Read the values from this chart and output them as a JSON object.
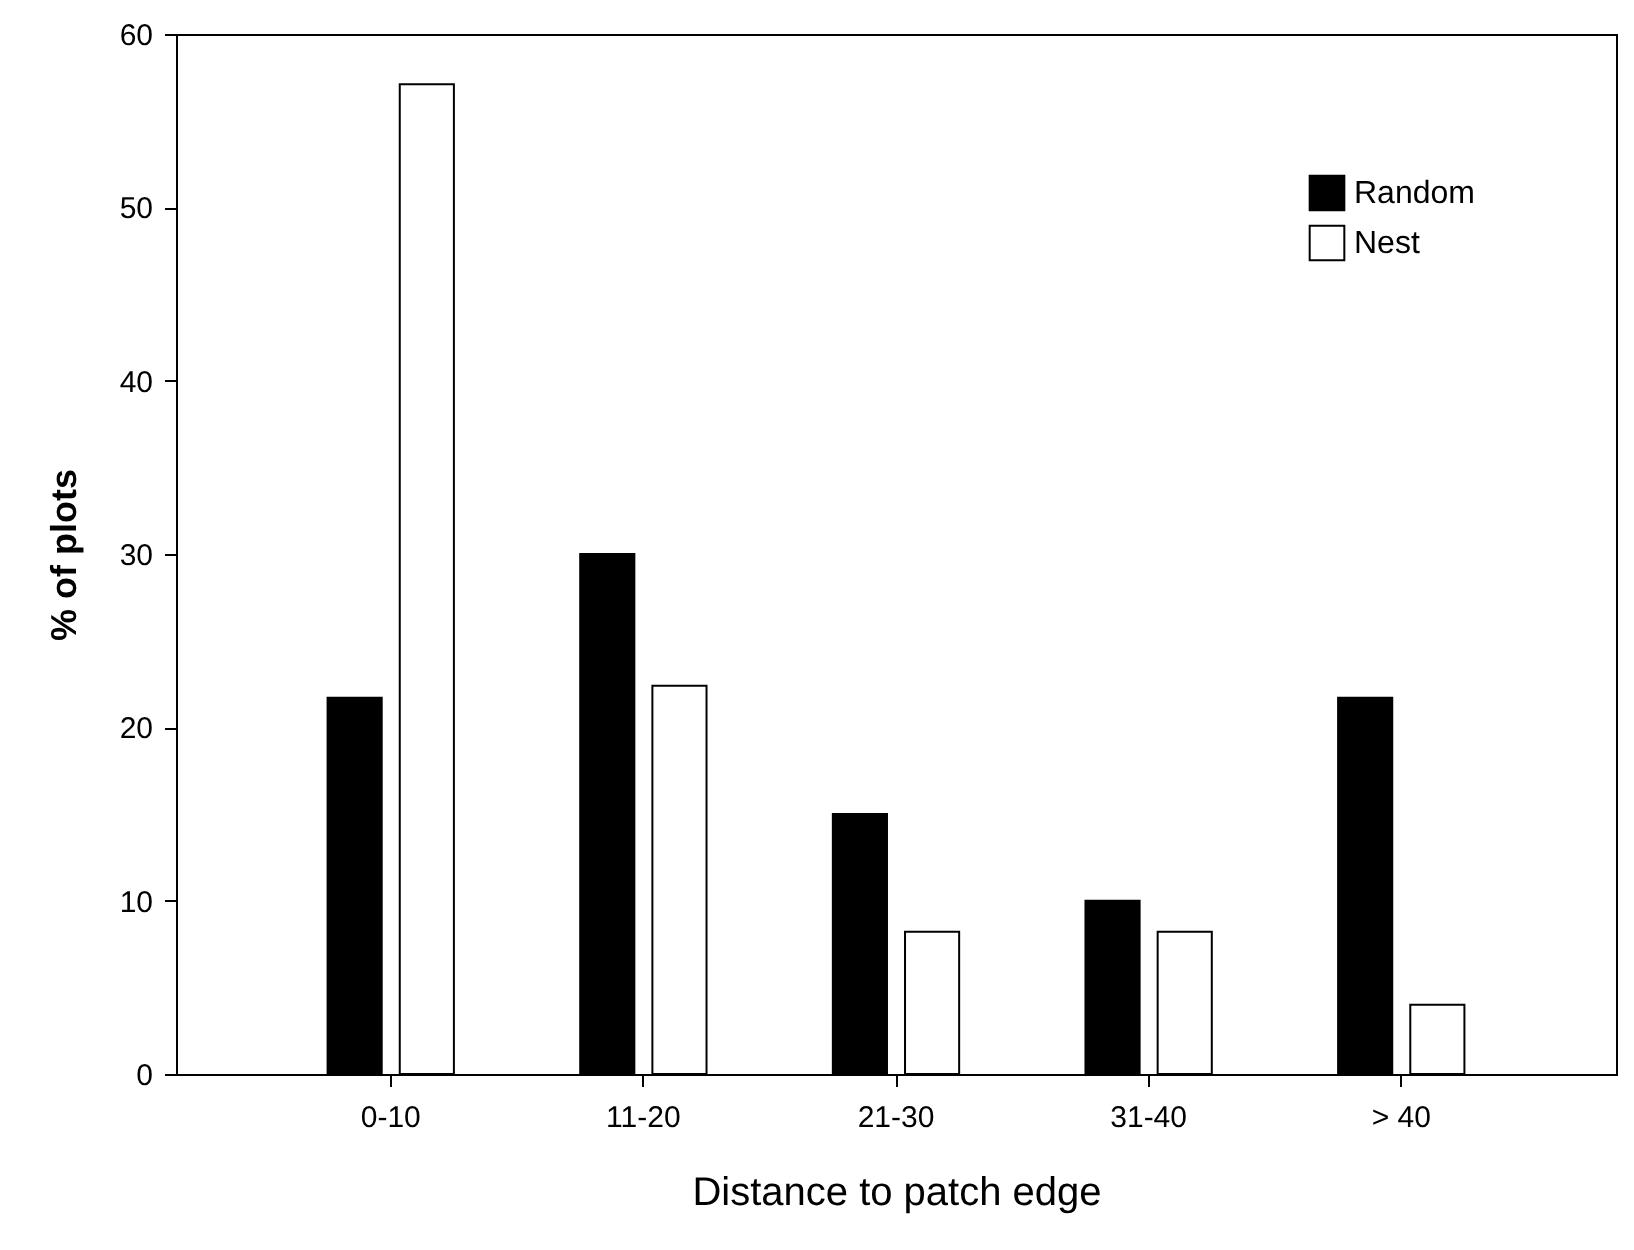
{
  "chart_data": {
    "type": "bar",
    "xlabel": "Distance to patch edge",
    "ylabel": "% of plots",
    "categories": [
      "0-10",
      "11-20",
      "21-30",
      "31-40",
      "> 40"
    ],
    "series": [
      {
        "name": "Random",
        "color": "#000000",
        "values": [
          21.7,
          30,
          15,
          10,
          21.7
        ]
      },
      {
        "name": "Nest",
        "color": "#ffffff",
        "values": [
          57.1,
          22.4,
          8.2,
          8.2,
          4
        ]
      }
    ],
    "ylim": [
      0,
      60
    ],
    "yticks": [
      0,
      10,
      20,
      30,
      40,
      50,
      60
    ],
    "grid": false,
    "legend": "top right"
  }
}
